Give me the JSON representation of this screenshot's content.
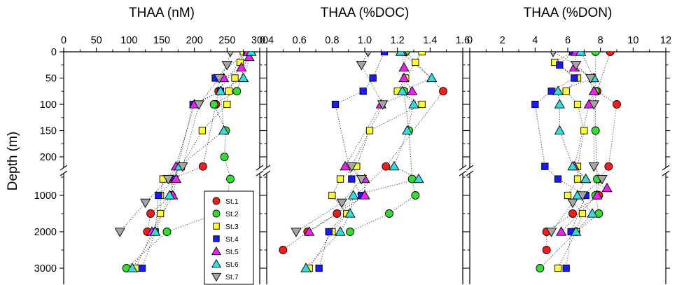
{
  "figure": {
    "ylabel": "Depth (m)",
    "depth_ticks": [
      "0",
      "50",
      "100",
      "150",
      "200",
      "1000",
      "2000",
      "3000"
    ],
    "marker_colors": {
      "circle": "#e8141b",
      "square": "#ffff33",
      "triangle": "#00e5e5",
      "invtriangle": "#a6a6a6"
    }
  },
  "chart_data": [
    {
      "type": "scatter",
      "title": "THAA (nM)",
      "xlim": [
        0,
        300
      ],
      "xticks": [
        "0",
        "50",
        "100",
        "150",
        "200",
        "250",
        "300"
      ],
      "ylabel": "Depth (m)",
      "y_axis": "broken: 0–200 m linear, 500–3000 m linear",
      "grid": false,
      "legend_position": "lower-right",
      "series": [
        {
          "name": "St.1",
          "marker": "circle",
          "color": "#ff1a1a",
          "points": [
            [
              280,
              0
            ],
            [
              237,
              75
            ],
            [
              233,
              100
            ],
            [
              213,
              205
            ],
            [
              165,
              550
            ],
            [
              165,
              1000
            ],
            [
              133,
              1500
            ],
            [
              128,
              2000
            ]
          ]
        },
        {
          "name": "St.2",
          "marker": "circle",
          "color": "#33dd33",
          "points": [
            [
              284,
              0
            ],
            [
              265,
              75
            ],
            [
              230,
              100
            ],
            [
              248,
              150
            ],
            [
              246,
              200
            ],
            [
              255,
              550
            ],
            [
              250,
              1000
            ],
            [
              235,
              1500
            ],
            [
              158,
              2000
            ],
            [
              96,
              3000
            ]
          ]
        },
        {
          "name": "St.3",
          "marker": "square",
          "color": "#ffff33",
          "points": [
            [
              275,
              0
            ],
            [
              270,
              20
            ],
            [
              262,
              50
            ],
            [
              253,
              75
            ],
            [
              250,
              100
            ],
            [
              212,
              150
            ],
            [
              180,
              205
            ],
            [
              152,
              550
            ],
            [
              148,
              1000
            ],
            [
              148,
              1500
            ],
            [
              110,
              3000
            ]
          ]
        },
        {
          "name": "St.4",
          "marker": "square",
          "color": "#1a1aff",
          "points": [
            [
              280,
              0
            ],
            [
              232,
              50
            ],
            [
              240,
              75
            ],
            [
              198,
              100
            ],
            [
              170,
              550
            ],
            [
              145,
              1000
            ],
            [
              140,
              2000
            ],
            [
              120,
              3000
            ]
          ]
        },
        {
          "name": "St.5",
          "marker": "triangle",
          "color": "#ee22ee",
          "points": [
            [
              282,
              0
            ],
            [
              284,
              10
            ],
            [
              272,
              30
            ],
            [
              245,
              50
            ],
            [
              240,
              75
            ],
            [
              200,
              100
            ],
            [
              172,
              205
            ],
            [
              172,
              550
            ],
            [
              167,
              1000
            ],
            [
              135,
              2000
            ]
          ]
        },
        {
          "name": "St.6",
          "marker": "triangle",
          "color": "#33dddd",
          "points": [
            [
              287,
              0
            ],
            [
              275,
              50
            ],
            [
              240,
              75
            ],
            [
              245,
              150
            ],
            [
              177,
              205
            ],
            [
              162,
              1000
            ],
            [
              140,
              2000
            ],
            [
              105,
              3000
            ]
          ]
        },
        {
          "name": "St.7",
          "marker": "invtriangle",
          "color": "#a6a6a6",
          "points": [
            [
              255,
              0
            ],
            [
              250,
              25
            ],
            [
              238,
              50
            ],
            [
              207,
              100
            ],
            [
              182,
              205
            ],
            [
              160,
              550
            ],
            [
              125,
              1200
            ],
            [
              86,
              2000
            ]
          ]
        }
      ]
    },
    {
      "type": "scatter",
      "title": "THAA (%DOC)",
      "xlim": [
        0.4,
        1.6
      ],
      "xticks": [
        "0.4",
        "0.6",
        "0.8",
        "1.0",
        "1.2",
        "1.4",
        "1.6"
      ],
      "ylabel": "Depth (m)",
      "grid": false,
      "series": [
        {
          "name": "St.1",
          "marker": "circle",
          "color": "#ff1a1a",
          "points": [
            [
              1.25,
              0
            ],
            [
              1.48,
              75
            ],
            [
              1.13,
              205
            ],
            [
              0.83,
              1500
            ],
            [
              0.65,
              2000
            ],
            [
              0.5,
              2500
            ]
          ]
        },
        {
          "name": "St.2",
          "marker": "circle",
          "color": "#33dd33",
          "points": [
            [
              1.25,
              0
            ],
            [
              1.24,
              75
            ],
            [
              1.27,
              150
            ],
            [
              1.29,
              550
            ],
            [
              1.31,
              1000
            ],
            [
              1.15,
              1500
            ],
            [
              0.91,
              2000
            ]
          ]
        },
        {
          "name": "St.3",
          "marker": "square",
          "color": "#ffff33",
          "points": [
            [
              1.35,
              0
            ],
            [
              1.31,
              20
            ],
            [
              1.25,
              50
            ],
            [
              1.2,
              75
            ],
            [
              1.35,
              100
            ],
            [
              1.03,
              150
            ],
            [
              0.95,
              205
            ],
            [
              0.85,
              550
            ],
            [
              0.8,
              1000
            ],
            [
              0.89,
              1500
            ],
            [
              0.8,
              2000
            ],
            [
              0.66,
              3000
            ]
          ]
        },
        {
          "name": "St.4",
          "marker": "square",
          "color": "#1a1aff",
          "points": [
            [
              1.12,
              0
            ],
            [
              1.05,
              50
            ],
            [
              0.99,
              75
            ],
            [
              0.82,
              100
            ],
            [
              0.92,
              550
            ],
            [
              0.98,
              1000
            ],
            [
              0.78,
              2000
            ],
            [
              0.72,
              3000
            ]
          ]
        },
        {
          "name": "St.5",
          "marker": "triangle",
          "color": "#ee22ee",
          "points": [
            [
              1.23,
              0
            ],
            [
              1.24,
              30
            ],
            [
              1.24,
              50
            ],
            [
              1.29,
              75
            ],
            [
              1.1,
              100
            ],
            [
              0.88,
              205
            ],
            [
              1.0,
              550
            ],
            [
              1.0,
              1000
            ],
            [
              0.66,
              2000
            ]
          ]
        },
        {
          "name": "St.6",
          "marker": "triangle",
          "color": "#33dddd",
          "points": [
            [
              1.22,
              0
            ],
            [
              1.41,
              50
            ],
            [
              1.23,
              75
            ],
            [
              1.3,
              100
            ],
            [
              1.26,
              150
            ],
            [
              1.18,
              205
            ],
            [
              1.33,
              550
            ],
            [
              0.93,
              1000
            ],
            [
              0.91,
              1500
            ],
            [
              0.85,
              2000
            ],
            [
              0.64,
              3000
            ]
          ]
        },
        {
          "name": "St.7",
          "marker": "invtriangle",
          "color": "#a6a6a6",
          "points": [
            [
              1.02,
              0
            ],
            [
              0.98,
              25
            ],
            [
              1.11,
              100
            ],
            [
              0.92,
              205
            ],
            [
              0.98,
              550
            ],
            [
              0.86,
              1200
            ],
            [
              0.58,
              2000
            ]
          ]
        }
      ]
    },
    {
      "type": "scatter",
      "title": "THAA (%DON)",
      "xlim": [
        0,
        12
      ],
      "xticks": [
        "0",
        "2",
        "4",
        "6",
        "8",
        "10",
        "12"
      ],
      "ylabel": "Depth (m)",
      "grid": false,
      "series": [
        {
          "name": "St.1",
          "marker": "circle",
          "color": "#ff1a1a",
          "points": [
            [
              8.6,
              0
            ],
            [
              7.8,
              75
            ],
            [
              9.0,
              100
            ],
            [
              8.5,
              205
            ],
            [
              7.9,
              550
            ],
            [
              7.9,
              1000
            ],
            [
              6.3,
              1500
            ],
            [
              4.7,
              2000
            ],
            [
              4.7,
              2500
            ]
          ]
        },
        {
          "name": "St.2",
          "marker": "circle",
          "color": "#33dd33",
          "points": [
            [
              7.7,
              0
            ],
            [
              7.7,
              75
            ],
            [
              7.7,
              150
            ],
            [
              7.8,
              550
            ],
            [
              7.7,
              1000
            ],
            [
              7.9,
              1500
            ],
            [
              6.5,
              2000
            ],
            [
              4.3,
              3000
            ]
          ]
        },
        {
          "name": "St.3",
          "marker": "square",
          "color": "#ffff33",
          "points": [
            [
              6.3,
              0
            ],
            [
              5.2,
              20
            ],
            [
              6.6,
              50
            ],
            [
              5.9,
              75
            ],
            [
              6.6,
              100
            ],
            [
              7.0,
              150
            ],
            [
              6.6,
              205
            ],
            [
              6.6,
              550
            ],
            [
              6.0,
              1000
            ],
            [
              6.9,
              1500
            ],
            [
              6.5,
              2000
            ],
            [
              5.4,
              3000
            ]
          ]
        },
        {
          "name": "St.4",
          "marker": "square",
          "color": "#1a1aff",
          "points": [
            [
              6.3,
              0
            ],
            [
              5.5,
              25
            ],
            [
              6.4,
              50
            ],
            [
              5.0,
              75
            ],
            [
              4.0,
              100
            ],
            [
              4.6,
              205
            ],
            [
              5.4,
              550
            ],
            [
              7.1,
              1000
            ],
            [
              6.2,
              2000
            ],
            [
              5.9,
              3000
            ]
          ]
        },
        {
          "name": "St.5",
          "marker": "triangle",
          "color": "#ee22ee",
          "points": [
            [
              6.5,
              0
            ],
            [
              6.4,
              30
            ],
            [
              7.6,
              50
            ],
            [
              7.6,
              75
            ],
            [
              7.3,
              100
            ],
            [
              6.4,
              205
            ],
            [
              7.1,
              550
            ],
            [
              8.4,
              800
            ],
            [
              7.8,
              1000
            ],
            [
              5.6,
              2000
            ]
          ]
        },
        {
          "name": "St.6",
          "marker": "triangle",
          "color": "#33dddd",
          "points": [
            [
              6.8,
              0
            ],
            [
              7.6,
              50
            ],
            [
              5.4,
              75
            ],
            [
              5.5,
              100
            ],
            [
              5.5,
              150
            ],
            [
              6.3,
              205
            ],
            [
              7.1,
              550
            ],
            [
              6.6,
              1000
            ],
            [
              7.5,
              1500
            ],
            [
              6.5,
              2000
            ]
          ]
        },
        {
          "name": "St.7",
          "marker": "invtriangle",
          "color": "#a6a6a6",
          "points": [
            [
              5.1,
              0
            ],
            [
              6.5,
              25
            ],
            [
              7.4,
              50
            ],
            [
              7.6,
              100
            ],
            [
              7.6,
              205
            ],
            [
              8.1,
              550
            ],
            [
              6.9,
              1000
            ],
            [
              6.3,
              1200
            ],
            [
              5.0,
              2000
            ]
          ]
        }
      ]
    }
  ]
}
